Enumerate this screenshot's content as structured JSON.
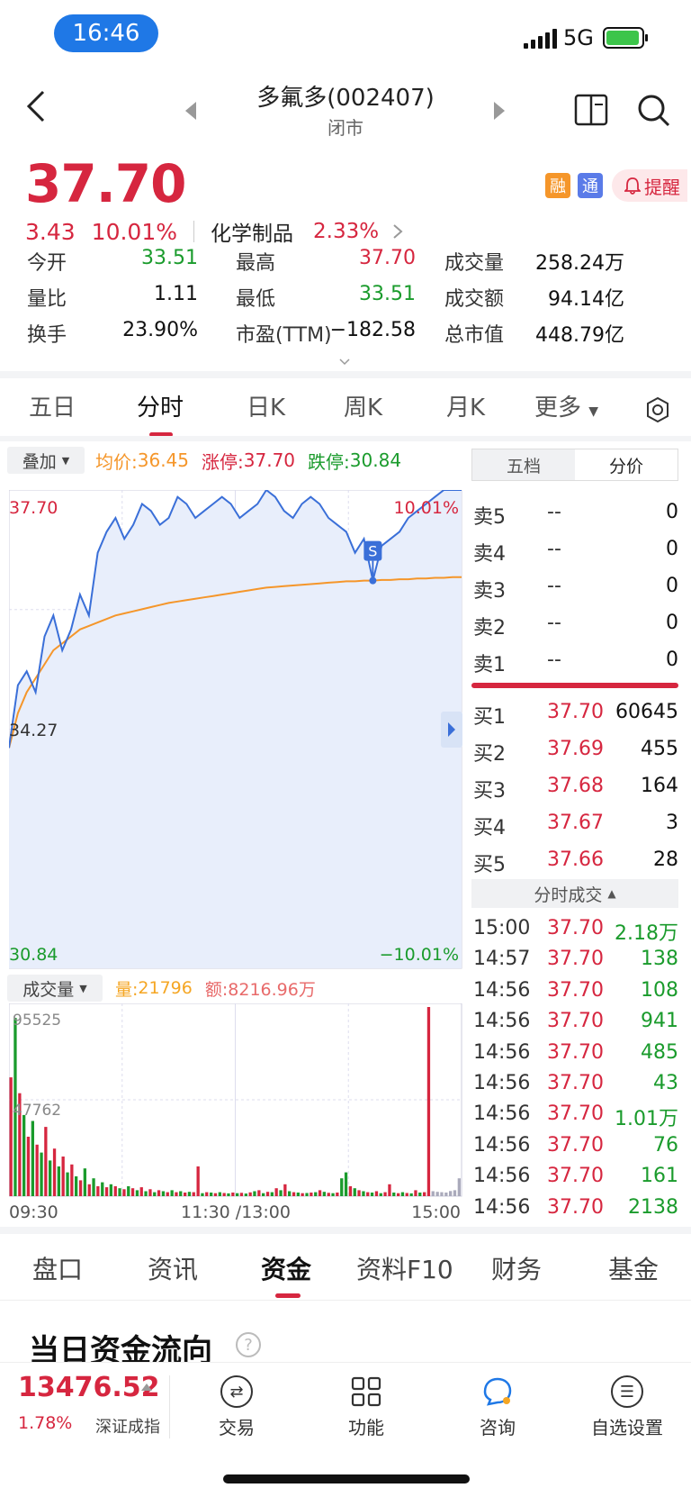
{
  "status_bar": {
    "time": "16:46",
    "network": "5G"
  },
  "header": {
    "title": "多氟多(002407)",
    "subtitle": "闭市"
  },
  "quote": {
    "price": "37.70",
    "change": "3.43",
    "change_pct": "10.01%",
    "sector": "化学制品",
    "sector_pct": "2.33%",
    "badges": [
      "融",
      "通"
    ],
    "alert_label": "提醒"
  },
  "stats": [
    [
      {
        "label": "今开",
        "value": "33.51",
        "color": "green"
      },
      {
        "label": "最高",
        "value": "37.70",
        "color": "red"
      },
      {
        "label": "成交量",
        "value": "258.24万",
        "color": "black"
      }
    ],
    [
      {
        "label": "量比",
        "value": "1.11",
        "color": "black"
      },
      {
        "label": "最低",
        "value": "33.51",
        "color": "green"
      },
      {
        "label": "成交额",
        "value": "94.14亿",
        "color": "black"
      }
    ],
    [
      {
        "label": "换手",
        "value": "23.90%",
        "color": "black"
      },
      {
        "label": "市盈(TTM)",
        "value": "−182.58",
        "color": "black"
      },
      {
        "label": "总市值",
        "value": "448.79亿",
        "color": "black"
      }
    ]
  ],
  "period_tabs": [
    "五日",
    "分时",
    "日K",
    "周K",
    "月K",
    "更多"
  ],
  "chart_toolbar": {
    "overlay": "叠加",
    "avg_label": "均价:",
    "avg_value": "36.45",
    "limit_up_label": "涨停:",
    "limit_up_value": "37.70",
    "limit_down_label": "跌停:",
    "limit_down_value": "30.84"
  },
  "volume_toolbar": {
    "selector": "成交量",
    "vol_label": "量:",
    "vol_value": "21796",
    "amt_label": "额:",
    "amt_value": "8216.96万"
  },
  "chart_data": {
    "type": "line",
    "y_axis": {
      "top": "37.70",
      "mid": "34.27",
      "bottom": "30.84",
      "top_pct": "10.01%",
      "bottom_pct": "−10.01%"
    },
    "ylim": [
      30.84,
      37.7
    ],
    "x_labels": [
      "09:30",
      "11:30 /13:00",
      "15:00"
    ],
    "marker": "S",
    "series": [
      {
        "values": [
          34.0,
          34.9,
          35.1,
          34.8,
          35.6,
          35.9,
          35.4,
          35.7,
          36.2,
          35.9,
          36.8,
          37.1,
          37.3,
          37.0,
          37.2,
          37.5,
          37.4,
          37.2,
          37.3,
          37.6,
          37.5,
          37.3,
          37.4,
          37.5,
          37.6,
          37.5,
          37.3,
          37.4,
          37.5,
          37.7,
          37.6,
          37.4,
          37.3,
          37.5,
          37.6,
          37.5,
          37.3,
          37.2,
          37.1,
          36.8,
          37.0,
          36.4,
          36.9,
          37.0,
          37.1,
          37.3,
          37.4,
          37.5,
          37.6,
          37.7,
          37.7,
          37.7
        ]
      },
      {
        "values": [
          34.0,
          34.5,
          34.8,
          35.0,
          35.2,
          35.4,
          35.5,
          35.6,
          35.7,
          35.75,
          35.8,
          35.85,
          35.9,
          35.93,
          35.96,
          35.99,
          36.02,
          36.05,
          36.08,
          36.1,
          36.12,
          36.14,
          36.16,
          36.18,
          36.2,
          36.22,
          36.24,
          36.26,
          36.28,
          36.3,
          36.31,
          36.32,
          36.33,
          36.34,
          36.35,
          36.36,
          36.37,
          36.38,
          36.39,
          36.39,
          36.4,
          36.4,
          36.41,
          36.41,
          36.42,
          36.42,
          36.43,
          36.43,
          36.44,
          36.44,
          36.45,
          36.45
        ]
      }
    ],
    "volume": {
      "labels": {
        "max": "95525",
        "mid": "47762"
      },
      "ylim": [
        0,
        95525
      ],
      "bars": [
        [
          60000,
          "r"
        ],
        [
          90000,
          "g"
        ],
        [
          52000,
          "r"
        ],
        [
          41000,
          "g"
        ],
        [
          30000,
          "r"
        ],
        [
          38000,
          "g"
        ],
        [
          26000,
          "r"
        ],
        [
          22000,
          "g"
        ],
        [
          35000,
          "r"
        ],
        [
          18000,
          "g"
        ],
        [
          24000,
          "r"
        ],
        [
          15000,
          "g"
        ],
        [
          20000,
          "r"
        ],
        [
          12000,
          "g"
        ],
        [
          16000,
          "r"
        ],
        [
          10000,
          "g"
        ],
        [
          8000,
          "r"
        ],
        [
          14000,
          "g"
        ],
        [
          6000,
          "r"
        ],
        [
          9000,
          "g"
        ],
        [
          5000,
          "r"
        ],
        [
          7000,
          "g"
        ],
        [
          4500,
          "r"
        ],
        [
          6000,
          "g"
        ],
        [
          5000,
          "r"
        ],
        [
          4000,
          "g"
        ],
        [
          3500,
          "r"
        ],
        [
          5000,
          "g"
        ],
        [
          4000,
          "r"
        ],
        [
          3000,
          "g"
        ],
        [
          4500,
          "r"
        ],
        [
          2500,
          "g"
        ],
        [
          3500,
          "r"
        ],
        [
          2000,
          "g"
        ],
        [
          3000,
          "r"
        ],
        [
          2500,
          "g"
        ],
        [
          2000,
          "r"
        ],
        [
          3000,
          "g"
        ],
        [
          2000,
          "r"
        ],
        [
          2500,
          "g"
        ],
        [
          1800,
          "r"
        ],
        [
          2200,
          "g"
        ],
        [
          2000,
          "r"
        ],
        [
          15000,
          "r"
        ],
        [
          1500,
          "g"
        ],
        [
          2000,
          "r"
        ],
        [
          1800,
          "g"
        ],
        [
          1500,
          "r"
        ],
        [
          2000,
          "g"
        ],
        [
          1600,
          "r"
        ],
        [
          1400,
          "g"
        ],
        [
          1800,
          "r"
        ],
        [
          1500,
          "g"
        ],
        [
          1700,
          "r"
        ],
        [
          1300,
          "g"
        ],
        [
          1900,
          "r"
        ],
        [
          2500,
          "g"
        ],
        [
          3000,
          "r"
        ],
        [
          1500,
          "g"
        ],
        [
          2200,
          "r"
        ],
        [
          2000,
          "g"
        ],
        [
          4000,
          "r"
        ],
        [
          3000,
          "g"
        ],
        [
          6000,
          "r"
        ],
        [
          2500,
          "g"
        ],
        [
          2000,
          "r"
        ],
        [
          1800,
          "g"
        ],
        [
          1500,
          "r"
        ],
        [
          1600,
          "g"
        ],
        [
          1800,
          "r"
        ],
        [
          2000,
          "g"
        ],
        [
          3000,
          "r"
        ],
        [
          2200,
          "g"
        ],
        [
          1700,
          "r"
        ],
        [
          1500,
          "g"
        ],
        [
          1800,
          "r"
        ],
        [
          9000,
          "g"
        ],
        [
          12000,
          "g"
        ],
        [
          5000,
          "r"
        ],
        [
          4000,
          "g"
        ],
        [
          3000,
          "r"
        ],
        [
          2500,
          "g"
        ],
        [
          2000,
          "r"
        ],
        [
          1800,
          "g"
        ],
        [
          2500,
          "r"
        ],
        [
          1500,
          "g"
        ],
        [
          2000,
          "r"
        ],
        [
          6000,
          "r"
        ],
        [
          1800,
          "g"
        ],
        [
          1500,
          "r"
        ],
        [
          2000,
          "g"
        ],
        [
          1600,
          "r"
        ],
        [
          1400,
          "g"
        ],
        [
          3000,
          "r"
        ],
        [
          1800,
          "g"
        ],
        [
          2000,
          "r"
        ],
        [
          95525,
          "r"
        ],
        [
          2500,
          "x"
        ],
        [
          2200,
          "x"
        ],
        [
          2000,
          "x"
        ],
        [
          1800,
          "x"
        ],
        [
          2600,
          "x"
        ],
        [
          3000,
          "x"
        ],
        [
          9000,
          "x"
        ]
      ]
    }
  },
  "order_book": {
    "tabs": [
      "五档",
      "分价"
    ],
    "asks": [
      {
        "label": "卖5",
        "price": "--",
        "vol": "0"
      },
      {
        "label": "卖4",
        "price": "--",
        "vol": "0"
      },
      {
        "label": "卖3",
        "price": "--",
        "vol": "0"
      },
      {
        "label": "卖2",
        "price": "--",
        "vol": "0"
      },
      {
        "label": "卖1",
        "price": "--",
        "vol": "0"
      }
    ],
    "bids": [
      {
        "label": "买1",
        "price": "37.70",
        "vol": "60645"
      },
      {
        "label": "买2",
        "price": "37.69",
        "vol": "455"
      },
      {
        "label": "买3",
        "price": "37.68",
        "vol": "164"
      },
      {
        "label": "买4",
        "price": "37.67",
        "vol": "3"
      },
      {
        "label": "买5",
        "price": "37.66",
        "vol": "28"
      }
    ],
    "ticks_header": "分时成交",
    "ticks": [
      {
        "time": "15:00",
        "price": "37.70",
        "vol": "2.18万"
      },
      {
        "time": "14:57",
        "price": "37.70",
        "vol": "138"
      },
      {
        "time": "14:56",
        "price": "37.70",
        "vol": "108"
      },
      {
        "time": "14:56",
        "price": "37.70",
        "vol": "941"
      },
      {
        "time": "14:56",
        "price": "37.70",
        "vol": "485"
      },
      {
        "time": "14:56",
        "price": "37.70",
        "vol": "43"
      },
      {
        "time": "14:56",
        "price": "37.70",
        "vol": "1.01万"
      },
      {
        "time": "14:56",
        "price": "37.70",
        "vol": "76"
      },
      {
        "time": "14:56",
        "price": "37.70",
        "vol": "161"
      },
      {
        "time": "14:56",
        "price": "37.70",
        "vol": "2138"
      }
    ]
  },
  "section_tabs": [
    "盘口",
    "资讯",
    "资金",
    "资料F10",
    "财务",
    "基金"
  ],
  "flow_title": "当日资金流向",
  "bottom_bar": {
    "index_value": "13476.52",
    "index_pct": "1.78%",
    "index_name": "深证成指",
    "nav": [
      "交易",
      "功能",
      "咨询",
      "自选设置"
    ]
  },
  "colors": {
    "up": "#d6263f",
    "down": "#1a9b2c",
    "price_line": "#3a6fd8",
    "avg_line": "#f5962a",
    "accent": "#1f78e6"
  }
}
